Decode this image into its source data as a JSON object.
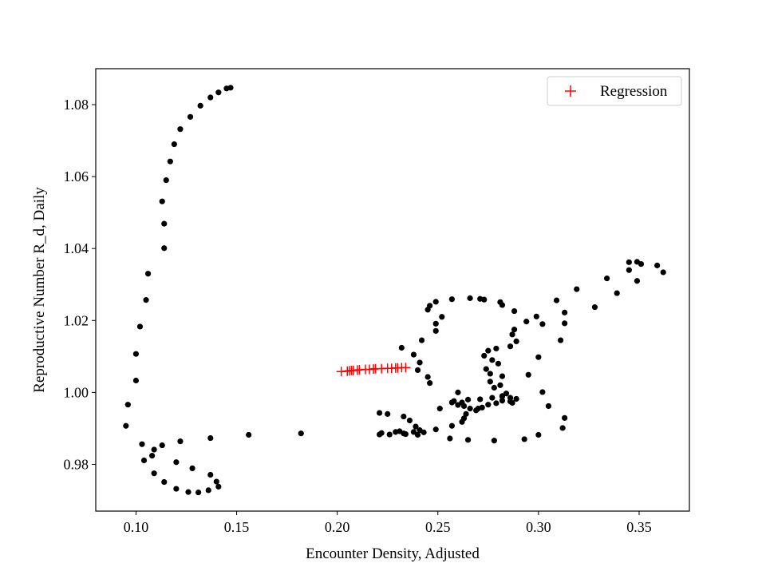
{
  "chart_data": {
    "type": "scatter",
    "title": "",
    "xlabel": "Encounter Density, Adjusted",
    "ylabel": "Reproductive Number R_d, Daily",
    "xlim": [
      0.08,
      0.375
    ],
    "ylim": [
      0.967,
      1.09
    ],
    "x_ticks": [
      0.1,
      0.15,
      0.2,
      0.25,
      0.3,
      0.35
    ],
    "x_tick_labels": [
      "0.10",
      "0.15",
      "0.20",
      "0.25",
      "0.30",
      "0.35"
    ],
    "y_ticks": [
      0.98,
      1.0,
      1.02,
      1.04,
      1.06,
      1.08
    ],
    "y_tick_labels": [
      "0.98",
      "1.00",
      "1.02",
      "1.04",
      "1.06",
      "1.08"
    ],
    "grid": false,
    "legend_position": "top-right",
    "series": [
      {
        "color": "#000000",
        "marker": "dot",
        "points": [
          [
            0.147,
            1.0847
          ],
          [
            0.145,
            1.0845
          ],
          [
            0.141,
            1.0834
          ],
          [
            0.137,
            1.082
          ],
          [
            0.132,
            1.0797
          ],
          [
            0.127,
            1.0766
          ],
          [
            0.122,
            1.0732
          ],
          [
            0.119,
            1.069
          ],
          [
            0.117,
            1.0642
          ],
          [
            0.115,
            1.059
          ],
          [
            0.113,
            1.0531
          ],
          [
            0.114,
            1.0469
          ],
          [
            0.114,
            1.0401
          ],
          [
            0.106,
            1.033
          ],
          [
            0.105,
            1.0257
          ],
          [
            0.102,
            1.0183
          ],
          [
            0.1,
            1.0107
          ],
          [
            0.1,
            1.0033
          ],
          [
            0.096,
            0.9966
          ],
          [
            0.095,
            0.9907
          ],
          [
            0.103,
            0.9856
          ],
          [
            0.104,
            0.9811
          ],
          [
            0.108,
            0.9824
          ],
          [
            0.109,
            0.9841
          ],
          [
            0.109,
            0.9775
          ],
          [
            0.114,
            0.9751
          ],
          [
            0.12,
            0.9732
          ],
          [
            0.126,
            0.9723
          ],
          [
            0.131,
            0.9722
          ],
          [
            0.136,
            0.9728
          ],
          [
            0.141,
            0.9738
          ],
          [
            0.14,
            0.9752
          ],
          [
            0.137,
            0.9771
          ],
          [
            0.128,
            0.9789
          ],
          [
            0.12,
            0.9806
          ],
          [
            0.113,
            0.9853
          ],
          [
            0.122,
            0.9864
          ],
          [
            0.137,
            0.9873
          ],
          [
            0.156,
            0.9882
          ],
          [
            0.182,
            0.9886
          ],
          [
            0.221,
            0.9883
          ],
          [
            0.221,
            0.9943
          ],
          [
            0.225,
            0.994
          ],
          [
            0.222,
            0.9887
          ],
          [
            0.226,
            0.9883
          ],
          [
            0.229,
            0.989
          ],
          [
            0.231,
            0.9892
          ],
          [
            0.233,
            0.9886
          ],
          [
            0.234,
            0.9884
          ],
          [
            0.233,
            0.9933
          ],
          [
            0.236,
            0.9922
          ],
          [
            0.238,
            0.989
          ],
          [
            0.239,
            0.9905
          ],
          [
            0.241,
            0.9895
          ],
          [
            0.24,
            0.9882
          ],
          [
            0.243,
            0.9889
          ],
          [
            0.249,
            0.9897
          ],
          [
            0.251,
            0.9955
          ],
          [
            0.257,
            0.9972
          ],
          [
            0.257,
            0.9907
          ],
          [
            0.258,
            0.9976
          ],
          [
            0.26,
            1.0
          ],
          [
            0.232,
            1.0124
          ],
          [
            0.238,
            1.0105
          ],
          [
            0.241,
            1.0083
          ],
          [
            0.24,
            1.0062
          ],
          [
            0.245,
            1.0043
          ],
          [
            0.246,
            1.0026
          ],
          [
            0.242,
            1.0145
          ],
          [
            0.249,
            1.0171
          ],
          [
            0.249,
            1.0191
          ],
          [
            0.252,
            1.021
          ],
          [
            0.245,
            1.023
          ],
          [
            0.246,
            1.0241
          ],
          [
            0.249,
            1.0252
          ],
          [
            0.257,
            1.0259
          ],
          [
            0.266,
            1.0262
          ],
          [
            0.271,
            1.026
          ],
          [
            0.273,
            1.0258
          ],
          [
            0.281,
            1.0251
          ],
          [
            0.282,
            1.0243
          ],
          [
            0.288,
            1.0226
          ],
          [
            0.288,
            1.0175
          ],
          [
            0.287,
            1.0161
          ],
          [
            0.289,
            1.0142
          ],
          [
            0.286,
            1.0128
          ],
          [
            0.279,
            1.0122
          ],
          [
            0.275,
            1.0116
          ],
          [
            0.273,
            1.0102
          ],
          [
            0.277,
            1.009
          ],
          [
            0.28,
            1.008
          ],
          [
            0.274,
            1.0065
          ],
          [
            0.276,
            1.0052
          ],
          [
            0.282,
            1.0045
          ],
          [
            0.276,
            1.003
          ],
          [
            0.281,
            1.002
          ],
          [
            0.278,
            1.0013
          ],
          [
            0.284,
            0.9997
          ],
          [
            0.282,
            0.9989
          ],
          [
            0.286,
            0.9985
          ],
          [
            0.282,
            0.9977
          ],
          [
            0.286,
            0.9975
          ],
          [
            0.289,
            0.9982
          ],
          [
            0.282,
            0.999
          ],
          [
            0.277,
            0.9985
          ],
          [
            0.271,
            0.9981
          ],
          [
            0.265,
            0.998
          ],
          [
            0.262,
            0.9972
          ],
          [
            0.26,
            0.9965
          ],
          [
            0.263,
            0.9962
          ],
          [
            0.266,
            0.9955
          ],
          [
            0.269,
            0.995
          ],
          [
            0.272,
            0.9958
          ],
          [
            0.275,
            0.9966
          ],
          [
            0.279,
            0.997
          ],
          [
            0.287,
            0.9971
          ],
          [
            0.263,
            0.9928
          ],
          [
            0.264,
            0.994
          ],
          [
            0.262,
            0.9918
          ],
          [
            0.27,
            0.9955
          ],
          [
            0.265,
            0.9868
          ],
          [
            0.278,
            0.9866
          ],
          [
            0.256,
            0.9872
          ],
          [
            0.293,
            0.987
          ],
          [
            0.3,
            0.9882
          ],
          [
            0.312,
            0.9901
          ],
          [
            0.313,
            0.9929
          ],
          [
            0.305,
            0.9962
          ],
          [
            0.302,
            1.0001
          ],
          [
            0.295,
            1.0049
          ],
          [
            0.3,
            1.0098
          ],
          [
            0.311,
            1.0145
          ],
          [
            0.313,
            1.0192
          ],
          [
            0.313,
            1.0222
          ],
          [
            0.309,
            1.0256
          ],
          [
            0.319,
            1.0287
          ],
          [
            0.328,
            1.0237
          ],
          [
            0.339,
            1.0276
          ],
          [
            0.334,
            1.0317
          ],
          [
            0.345,
            1.0362
          ],
          [
            0.345,
            1.034
          ],
          [
            0.349,
            1.031
          ],
          [
            0.349,
            1.0363
          ],
          [
            0.351,
            1.0357
          ],
          [
            0.359,
            1.0353
          ],
          [
            0.362,
            1.0334
          ],
          [
            0.294,
            1.0197
          ],
          [
            0.299,
            1.0211
          ],
          [
            0.302,
            1.019
          ]
        ]
      },
      {
        "name": "Regression",
        "color": "#ff0000",
        "marker": "plus",
        "points": [
          [
            0.202,
            1.0058
          ],
          [
            0.205,
            1.0059
          ],
          [
            0.206,
            1.006
          ],
          [
            0.207,
            1.0061
          ],
          [
            0.208,
            1.0061
          ],
          [
            0.21,
            1.0062
          ],
          [
            0.211,
            1.0063
          ],
          [
            0.214,
            1.0064
          ],
          [
            0.216,
            1.0064
          ],
          [
            0.218,
            1.0065
          ],
          [
            0.219,
            1.0066
          ],
          [
            0.222,
            1.0066
          ],
          [
            0.225,
            1.0067
          ],
          [
            0.227,
            1.0067
          ],
          [
            0.229,
            1.0068
          ],
          [
            0.23,
            1.0068
          ],
          [
            0.232,
            1.0069
          ],
          [
            0.234,
            1.0069
          ]
        ]
      }
    ]
  }
}
